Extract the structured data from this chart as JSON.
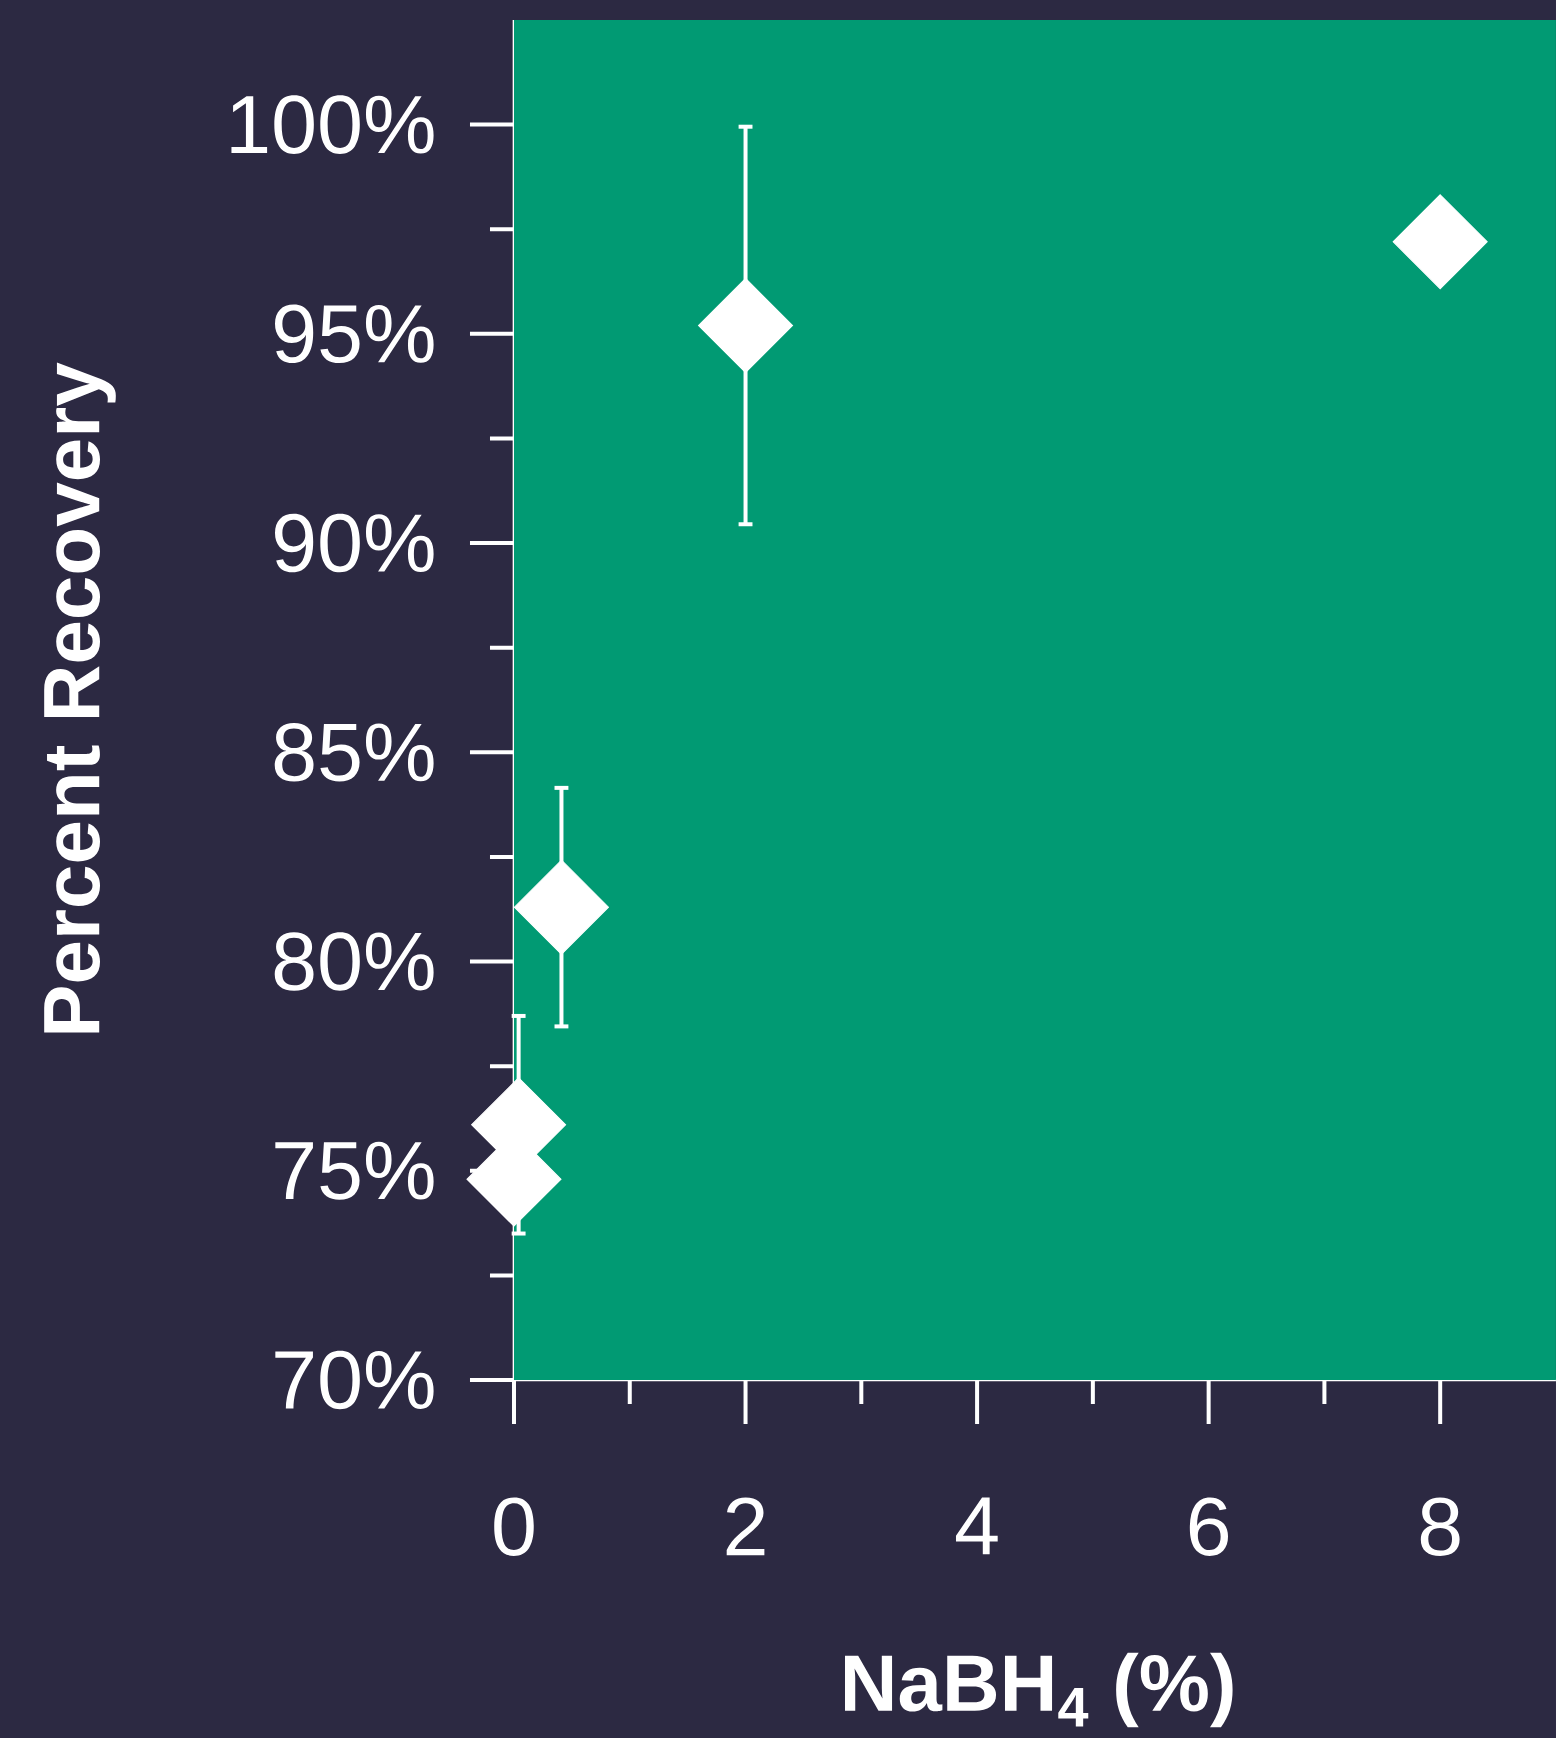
{
  "chart_data": {
    "type": "scatter",
    "xlabel": "NaBH$_{4}$ (%)",
    "ylabel": "Percent Recovery",
    "x": [
      0,
      0.04,
      0.41,
      2,
      8
    ],
    "values": [
      74.8,
      76.1,
      81.3,
      95.2,
      97.2
    ],
    "errors": [
      null,
      2.6,
      2.85,
      4.75,
      null
    ],
    "color": "#ffffff",
    "marker": "diamond",
    "xlim": [
      0,
      9
    ],
    "xticks": [
      0,
      2,
      4,
      6,
      8
    ],
    "ylim": [
      70,
      102.5
    ],
    "yticks": [
      {
        "value": 70,
        "label": "70%"
      },
      {
        "value": 75,
        "label": "75%"
      },
      {
        "value": 80,
        "label": "80%"
      },
      {
        "value": 85,
        "label": "85%"
      },
      {
        "value": 90,
        "label": "90%"
      },
      {
        "value": 95,
        "label": "95%"
      },
      {
        "value": 100,
        "label": "100%"
      }
    ],
    "grid": false
  }
}
